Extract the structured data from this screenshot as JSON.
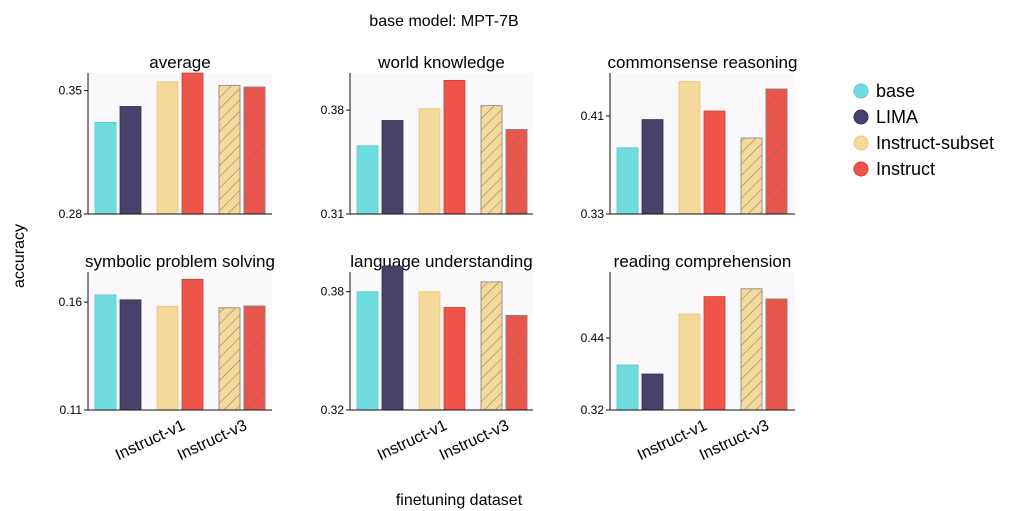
{
  "figure": {
    "suptitle": "base model: MPT-7B",
    "ylabel": "accuracy",
    "xlabel": "finetuning dataset"
  },
  "legend": [
    {
      "label": "base",
      "color": "#6fdde0"
    },
    {
      "label": "LIMA",
      "color": "#47426a"
    },
    {
      "label": "Instruct-subset",
      "color": "#f5d99a"
    },
    {
      "label": "Instruct",
      "color": "#ee5449"
    }
  ],
  "chart_data": [
    {
      "type": "bar",
      "title": "average",
      "ylim": [
        0.28,
        0.36
      ],
      "yticks": [
        "0.28",
        "0.35"
      ],
      "categories": [
        "base",
        "LIMA",
        "Instruct-v1",
        "Instruct-v1",
        "Instruct-v3",
        "Instruct-v3"
      ],
      "series_labels": [
        "base",
        "LIMA",
        "Instruct-subset",
        "Instruct",
        "Instruct-subset",
        "Instruct"
      ],
      "values": [
        0.332,
        0.341,
        0.355,
        0.36,
        0.353,
        0.352
      ],
      "xtick_labels": [
        "Instruct-v1",
        "Instruct-v3"
      ]
    },
    {
      "type": "bar",
      "title": "world knowledge",
      "ylim": [
        0.31,
        0.405
      ],
      "yticks": [
        "0.31",
        "0.38"
      ],
      "categories": [
        "base",
        "LIMA",
        "Instruct-v1",
        "Instruct-v1",
        "Instruct-v3",
        "Instruct-v3"
      ],
      "series_labels": [
        "base",
        "LIMA",
        "Instruct-subset",
        "Instruct",
        "Instruct-subset",
        "Instruct"
      ],
      "values": [
        0.356,
        0.373,
        0.381,
        0.4,
        0.383,
        0.367
      ],
      "xtick_labels": [
        "Instruct-v1",
        "Instruct-v3"
      ]
    },
    {
      "type": "bar",
      "title": "commonsense reasoning",
      "ylim": [
        0.33,
        0.445
      ],
      "yticks": [
        "0.33",
        "0.41"
      ],
      "categories": [
        "base",
        "LIMA",
        "Instruct-v1",
        "Instruct-v1",
        "Instruct-v3",
        "Instruct-v3"
      ],
      "series_labels": [
        "base",
        "LIMA",
        "Instruct-subset",
        "Instruct",
        "Instruct-subset",
        "Instruct"
      ],
      "values": [
        0.384,
        0.407,
        0.438,
        0.414,
        0.392,
        0.432
      ],
      "xtick_labels": [
        "Instruct-v1",
        "Instruct-v3"
      ]
    },
    {
      "type": "bar",
      "title": "symbolic problem solving",
      "ylim": [
        0.11,
        0.174
      ],
      "yticks": [
        "0.11",
        "0.16"
      ],
      "categories": [
        "base",
        "LIMA",
        "Instruct-v1",
        "Instruct-v1",
        "Instruct-v3",
        "Instruct-v3"
      ],
      "series_labels": [
        "base",
        "LIMA",
        "Instruct-subset",
        "Instruct",
        "Instruct-subset",
        "Instruct"
      ],
      "values": [
        0.1634,
        0.1611,
        0.1581,
        0.1706,
        0.1574,
        0.1582
      ],
      "xtick_labels": [
        "Instruct-v1",
        "Instruct-v3"
      ]
    },
    {
      "type": "bar",
      "title": "language understanding",
      "ylim": [
        0.32,
        0.39
      ],
      "yticks": [
        "0.32",
        "0.38"
      ],
      "categories": [
        "base",
        "LIMA",
        "Instruct-v1",
        "Instruct-v1",
        "Instruct-v3",
        "Instruct-v3"
      ],
      "series_labels": [
        "base",
        "LIMA",
        "Instruct-subset",
        "Instruct",
        "Instruct-subset",
        "Instruct"
      ],
      "values": [
        0.38,
        0.393,
        0.38,
        0.372,
        0.385,
        0.368
      ],
      "xtick_labels": [
        "Instruct-v1",
        "Instruct-v3"
      ]
    },
    {
      "type": "bar",
      "title": "reading comprehension",
      "ylim": [
        0.32,
        0.55
      ],
      "yticks": [
        "0.32",
        "0.44"
      ],
      "categories": [
        "base",
        "LIMA",
        "Instruct-v1",
        "Instruct-v1",
        "Instruct-v3",
        "Instruct-v3"
      ],
      "series_labels": [
        "base",
        "LIMA",
        "Instruct-subset",
        "Instruct",
        "Instruct-subset",
        "Instruct"
      ],
      "values": [
        0.395,
        0.38,
        0.48,
        0.509,
        0.522,
        0.505
      ],
      "xtick_labels": [
        "Instruct-v1",
        "Instruct-v3"
      ]
    }
  ]
}
